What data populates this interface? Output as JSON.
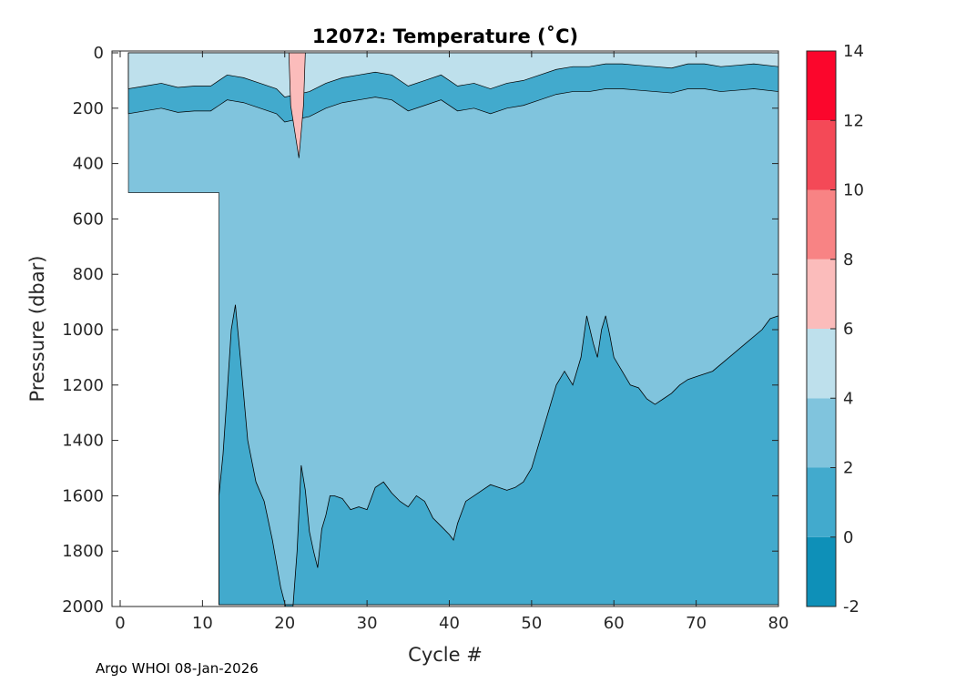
{
  "chart_data": {
    "type": "heatmap",
    "subtype": "filled-contour",
    "title": "12072:  Temperature (˚C)",
    "xlabel": "Cycle #",
    "ylabel": "Pressure (dbar)",
    "xlim": [
      0,
      80
    ],
    "ylim": [
      0,
      2000
    ],
    "y_reversed": true,
    "x_ticks": [
      0,
      10,
      20,
      30,
      40,
      50,
      60,
      70,
      80
    ],
    "y_ticks": [
      0,
      200,
      400,
      600,
      800,
      1000,
      1200,
      1400,
      1600,
      1800,
      2000
    ],
    "colorbar": {
      "levels": [
        -2,
        0,
        2,
        4,
        6,
        8,
        10,
        12,
        14
      ],
      "tick_labels": [
        "14",
        "12",
        "10",
        "8",
        "6",
        "4",
        "2",
        "0",
        "-2"
      ],
      "colors": [
        "#0e90b8",
        "#42aacd",
        "#80c4dd",
        "#bee0ec",
        "#fbbcbb",
        "#f88384",
        "#f44957",
        "#fb062c"
      ]
    },
    "data_start_cycle": 1,
    "data_end_cycle": 80,
    "early_profile_max_depth_dbar": 505,
    "early_profile_last_cycle": 12,
    "deep_layer_0_2C_top_boundary": {
      "cycle": [
        12,
        12.5,
        13,
        13.5,
        14,
        14.6,
        15.5,
        16.5,
        17.5,
        18.5,
        19.5,
        20.1,
        21,
        21.5,
        22,
        22.5,
        23,
        23.5,
        24,
        24.5,
        25,
        25.5,
        26,
        27,
        28,
        29,
        30,
        31,
        32,
        33,
        34,
        35,
        36,
        37,
        38,
        39,
        40,
        40.5,
        41,
        42,
        43,
        44,
        45,
        46,
        47,
        48,
        49,
        50,
        51,
        52,
        53,
        54,
        55,
        56,
        56.7,
        57.5,
        58,
        58.5,
        59,
        59.5,
        60,
        61,
        62,
        63,
        64,
        65,
        66,
        67,
        68,
        69,
        70,
        72,
        74,
        76,
        78,
        79,
        80
      ],
      "pressure": [
        1600,
        1450,
        1230,
        1000,
        910,
        1100,
        1400,
        1550,
        1620,
        1760,
        1930,
        2000,
        2000,
        1800,
        1490,
        1580,
        1730,
        1800,
        1860,
        1720,
        1670,
        1600,
        1600,
        1610,
        1650,
        1640,
        1650,
        1570,
        1550,
        1590,
        1620,
        1640,
        1600,
        1620,
        1680,
        1710,
        1740,
        1760,
        1700,
        1620,
        1600,
        1580,
        1560,
        1570,
        1580,
        1570,
        1550,
        1500,
        1400,
        1300,
        1200,
        1150,
        1200,
        1100,
        950,
        1050,
        1100,
        1000,
        950,
        1020,
        1100,
        1150,
        1200,
        1210,
        1250,
        1270,
        1250,
        1230,
        1200,
        1180,
        1170,
        1150,
        1100,
        1050,
        1000,
        960,
        950
      ]
    },
    "warm_layer_4_6C_bottom_boundary": {
      "cycle": [
        1,
        3,
        5,
        7,
        9,
        11,
        12,
        13,
        15,
        17,
        19,
        20,
        23,
        25,
        27,
        29,
        31,
        33,
        35,
        37,
        39,
        41,
        43,
        45,
        47,
        49,
        51,
        53,
        55,
        57,
        59,
        61,
        63,
        65,
        67,
        69,
        71,
        73,
        75,
        77,
        80
      ],
      "pressure": [
        130,
        120,
        110,
        125,
        120,
        120,
        100,
        80,
        90,
        110,
        130,
        160,
        140,
        110,
        90,
        80,
        70,
        80,
        120,
        100,
        80,
        120,
        110,
        130,
        110,
        100,
        80,
        60,
        50,
        50,
        40,
        40,
        45,
        50,
        55,
        40,
        40,
        50,
        45,
        40,
        50
      ]
    },
    "warm_core": {
      "cycle_range": [
        20.5,
        22.5
      ],
      "pressure_range": [
        0,
        380
      ],
      "max_temperature_C": 7.5
    }
  },
  "footer": {
    "credit": "Argo WHOI 08-Jan-2026"
  }
}
